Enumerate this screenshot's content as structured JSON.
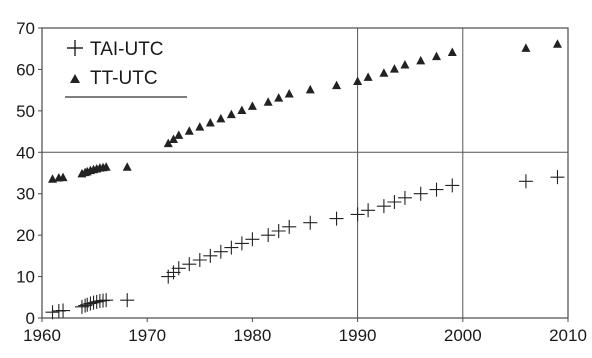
{
  "chart_data": {
    "type": "scatter",
    "title": "",
    "xlabel": "",
    "ylabel": "",
    "xlim": [
      1960,
      2010
    ],
    "ylim": [
      0,
      70
    ],
    "x_ticks": [
      1960,
      1970,
      1980,
      1990,
      2000,
      2010
    ],
    "y_ticks": [
      0,
      10,
      20,
      30,
      40,
      50,
      60,
      70
    ],
    "grid": {
      "vertical_at": [
        1990,
        2000
      ],
      "horizontal_at": [
        40
      ]
    },
    "legend_position": "top-left",
    "series": [
      {
        "name": "TAI-UTC",
        "marker": "plus",
        "color": "#222222",
        "x": [
          1961.0,
          1961.6,
          1962.0,
          1963.8,
          1964.1,
          1964.3,
          1964.6,
          1964.9,
          1965.2,
          1965.5,
          1965.8,
          1966.1,
          1968.1,
          1972.0,
          1972.5,
          1973.0,
          1974.0,
          1975.0,
          1976.0,
          1977.0,
          1978.0,
          1979.0,
          1980.0,
          1981.5,
          1982.5,
          1983.5,
          1985.5,
          1988.0,
          1990.0,
          1991.0,
          1992.5,
          1993.5,
          1994.5,
          1996.0,
          1997.5,
          1999.0,
          2006.0,
          2009.0
        ],
        "y": [
          1.4,
          1.7,
          1.8,
          2.7,
          3.0,
          3.2,
          3.5,
          3.7,
          3.9,
          4.1,
          4.2,
          4.3,
          4.3,
          10,
          11,
          12,
          13,
          14,
          15,
          16,
          17,
          18,
          19,
          20,
          21,
          22,
          23,
          24,
          25,
          26,
          27,
          28,
          29,
          30,
          31,
          32,
          33,
          34
        ]
      },
      {
        "name": "TT-UTC",
        "marker": "triangle",
        "color": "#222222",
        "x": [
          1961.0,
          1961.6,
          1962.0,
          1963.8,
          1964.1,
          1964.3,
          1964.6,
          1964.9,
          1965.2,
          1965.5,
          1965.8,
          1966.1,
          1968.1,
          1972.0,
          1972.5,
          1973.0,
          1974.0,
          1975.0,
          1976.0,
          1977.0,
          1978.0,
          1979.0,
          1980.0,
          1981.5,
          1982.5,
          1983.5,
          1985.5,
          1988.0,
          1990.0,
          1991.0,
          1992.5,
          1993.5,
          1994.5,
          1996.0,
          1997.5,
          1999.0,
          2006.0,
          2009.0
        ],
        "y": [
          33.6,
          33.9,
          34.0,
          34.9,
          35.2,
          35.4,
          35.7,
          35.9,
          36.1,
          36.3,
          36.4,
          36.5,
          36.5,
          42.2,
          43.2,
          44.2,
          45.2,
          46.2,
          47.2,
          48.2,
          49.2,
          50.2,
          51.2,
          52.2,
          53.2,
          54.2,
          55.2,
          56.2,
          57.2,
          58.2,
          59.2,
          60.2,
          61.2,
          62.2,
          63.2,
          64.2,
          65.2,
          66.2
        ]
      }
    ]
  }
}
